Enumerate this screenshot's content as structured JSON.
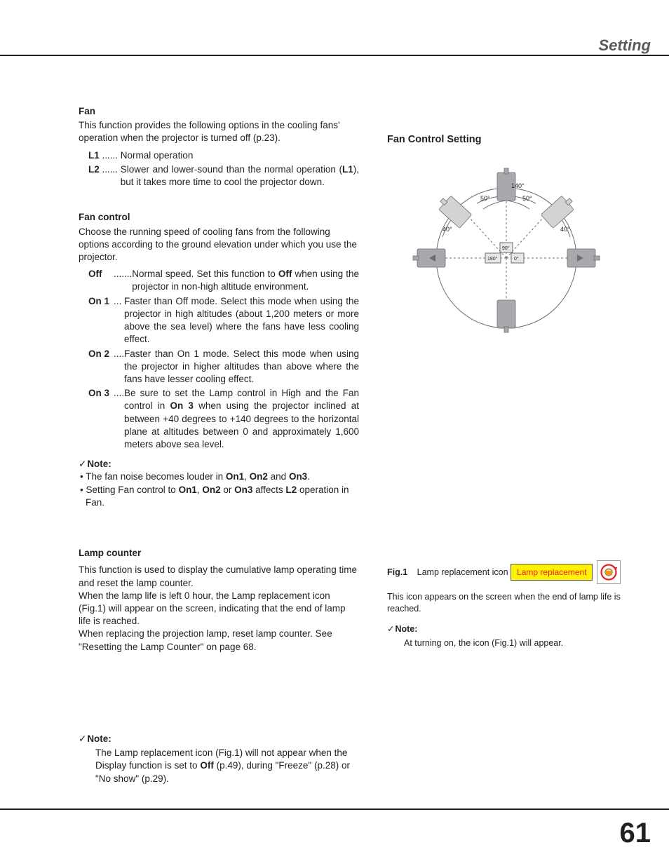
{
  "header": {
    "title": "Setting"
  },
  "footer": {
    "page": "61"
  },
  "fan": {
    "title": "Fan",
    "intro": "This function provides the following options in the cooling fans' operation when the projector is turned off (p.23).",
    "items": [
      {
        "term": "L1",
        "dots": " ...... ",
        "desc_plain": "Normal operation"
      },
      {
        "term": "L2",
        "dots": " ...... ",
        "desc_html": "Slower and lower-sound than the normal operation (<b>L1</b>), but it takes more time to cool the projector down."
      }
    ]
  },
  "fan_control": {
    "title": "Fan control",
    "intro": "Choose the running speed of cooling fans from the following options according to the ground elevation under which you use the projector.",
    "items": [
      {
        "term": "Off",
        "dots": ".......",
        "desc_html": "Normal speed. Set this function to <b>Off</b> when using the projector in non-high altitude environment."
      },
      {
        "term": "On 1",
        "dots": "... ",
        "desc_html": "Faster than Off mode. Select this mode when using the projector in high altitudes (about 1,200 meters or more above the sea level) where the fans have less cooling effect."
      },
      {
        "term": "On 2",
        "dots": "....",
        "desc_html": "Faster than On 1 mode. Select this mode when using the projector in higher altitudes than above where the fans have lesser cooling effect."
      },
      {
        "term": "On 3",
        "dots": "....",
        "desc_html": "Be sure to set the Lamp control in High and the Fan control in <b>On 3</b> when using the projector inclined at between +40 degrees to +140 degrees to the horizontal plane at altitudes between 0 and approximately 1,600 meters above sea level."
      }
    ],
    "note_head": "Note:",
    "notes_html": [
      "• The fan noise becomes louder in <b>On1</b>, <b>On2</b> and <b>On3</b>.",
      "• Setting Fan control to <b>On1</b>, <b>On2</b> or <b>On3</b> affects <b>L2</b> operation in Fan."
    ]
  },
  "lamp_counter": {
    "title": "Lamp counter",
    "p1": "This function is used to display the cumulative lamp operating time and reset  the lamp counter.",
    "p2": "When the lamp life is left 0 hour, the Lamp replacement icon (Fig.1) will appear on the screen, indicating that the end of lamp life is reached.",
    "p3": "When replacing the projection lamp, reset lamp counter. See \"Resetting the Lamp Counter\" on page 68."
  },
  "right": {
    "fan_ctrl_title": "Fan Control Setting",
    "diagram": {
      "angles": {
        "top": "140°",
        "top_left": "50°",
        "top_right": "50°",
        "side_left": "40°",
        "side_right": "40°",
        "center_left": "180°",
        "center_right": "0°",
        "mid": "90°"
      },
      "colors": {
        "stroke": "#6d6e71",
        "fill": "#a7a9ac",
        "light_fill": "#d1d3d4",
        "bg": "#ffffff"
      }
    },
    "fig1": {
      "label": "Fig.1",
      "caption": "Lamp replacement icon",
      "badge_text": "Lamp replacement",
      "desc": "This icon appears on the screen when the end of lamp life is reached.",
      "note_head": "Note:",
      "note_body": "At turning on, the icon (Fig.1) will appear."
    }
  },
  "bottom_note": {
    "head": "Note:",
    "body_html": "The Lamp replacement icon (Fig.1) will not appear when the Display function is set to <b>Off</b> (p.49), during \"Freeze\" (p.28) or \"No show\" (p.29)."
  }
}
